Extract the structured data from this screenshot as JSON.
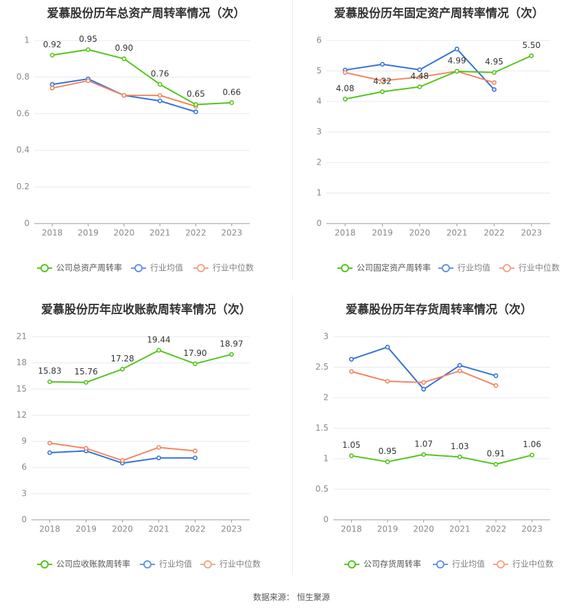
{
  "colors": {
    "company": "#52c41a",
    "industry_avg": "#3370d9",
    "industry_median": "#f08660",
    "grid": "#e3e8f0",
    "axis": "#999999",
    "title": "#333333",
    "tick": "#888888",
    "label": "#333333"
  },
  "legend": {
    "avg": "行业均值",
    "median": "行业中位数"
  },
  "source": {
    "label": "数据来源：",
    "value": "恒生聚源"
  },
  "chart_data": [
    {
      "type": "line",
      "title": "爱慕股份历年总资产周转率情况（次）",
      "categories": [
        "2018",
        "2019",
        "2020",
        "2021",
        "2022",
        "2023"
      ],
      "y_ticks": [
        "0",
        "0.2",
        "0.4",
        "0.6",
        "0.8",
        "1"
      ],
      "ylim": [
        0,
        1
      ],
      "grid": true,
      "legend_position": "bottom",
      "series": [
        {
          "name": "公司总资产周转率",
          "role": "company",
          "values": [
            0.92,
            0.95,
            0.9,
            0.76,
            0.65,
            0.66
          ],
          "labels": [
            "0.92",
            "0.95",
            "0.90",
            "0.76",
            "0.65",
            "0.66"
          ]
        },
        {
          "name": "行业均值",
          "role": "avg",
          "values": [
            0.76,
            0.79,
            0.7,
            0.67,
            0.61,
            null
          ]
        },
        {
          "name": "行业中位数",
          "role": "median",
          "values": [
            0.74,
            0.78,
            0.7,
            0.7,
            0.64,
            null
          ]
        }
      ]
    },
    {
      "type": "line",
      "title": "爱慕股份历年固定资产周转率情况（次）",
      "categories": [
        "2018",
        "2019",
        "2020",
        "2021",
        "2022",
        "2023"
      ],
      "y_ticks": [
        "0",
        "1",
        "2",
        "3",
        "4",
        "5",
        "6"
      ],
      "ylim": [
        0,
        6
      ],
      "grid": true,
      "legend_position": "bottom",
      "series": [
        {
          "name": "公司固定资产周转率",
          "role": "company",
          "values": [
            4.08,
            4.32,
            4.48,
            4.99,
            4.95,
            5.5
          ],
          "labels": [
            "4.08",
            "4.32",
            "4.48",
            "4.99",
            "4.95",
            "5.50"
          ]
        },
        {
          "name": "行业均值",
          "role": "avg",
          "values": [
            5.03,
            5.22,
            5.04,
            5.72,
            4.39,
            null
          ]
        },
        {
          "name": "行业中位数",
          "role": "median",
          "values": [
            4.95,
            4.68,
            4.8,
            4.99,
            4.62,
            null
          ]
        }
      ]
    },
    {
      "type": "line",
      "title": "爱慕股份历年应收账款周转率情况（次）",
      "categories": [
        "2018",
        "2019",
        "2020",
        "2021",
        "2022",
        "2023"
      ],
      "y_ticks": [
        "0",
        "3",
        "6",
        "9",
        "12",
        "15",
        "18",
        "21"
      ],
      "ylim": [
        0,
        21
      ],
      "grid": true,
      "legend_position": "bottom",
      "series": [
        {
          "name": "公司应收账款周转率",
          "role": "company",
          "values": [
            15.83,
            15.76,
            17.28,
            19.44,
            17.9,
            18.97
          ],
          "labels": [
            "15.83",
            "15.76",
            "17.28",
            "19.44",
            "17.90",
            "18.97"
          ]
        },
        {
          "name": "行业均值",
          "role": "avg",
          "values": [
            7.7,
            7.9,
            6.5,
            7.1,
            7.1,
            null
          ]
        },
        {
          "name": "行业中位数",
          "role": "median",
          "values": [
            8.8,
            8.2,
            6.8,
            8.3,
            7.9,
            null
          ]
        }
      ]
    },
    {
      "type": "line",
      "title": "爱慕股份历年存货周转率情况（次）",
      "categories": [
        "2018",
        "2019",
        "2020",
        "2021",
        "2022",
        "2023"
      ],
      "y_ticks": [
        "0",
        "0.5",
        "1",
        "1.5",
        "2",
        "2.5",
        "3"
      ],
      "ylim": [
        0,
        3
      ],
      "grid": true,
      "legend_position": "bottom",
      "series": [
        {
          "name": "公司存货周转率",
          "role": "company",
          "values": [
            1.05,
            0.95,
            1.07,
            1.03,
            0.91,
            1.06
          ],
          "labels": [
            "1.05",
            "0.95",
            "1.07",
            "1.03",
            "0.91",
            "1.06"
          ]
        },
        {
          "name": "行业均值",
          "role": "avg",
          "values": [
            2.63,
            2.83,
            2.14,
            2.53,
            2.36,
            null
          ]
        },
        {
          "name": "行业中位数",
          "role": "median",
          "values": [
            2.43,
            2.27,
            2.25,
            2.44,
            2.2,
            null
          ]
        }
      ]
    }
  ]
}
